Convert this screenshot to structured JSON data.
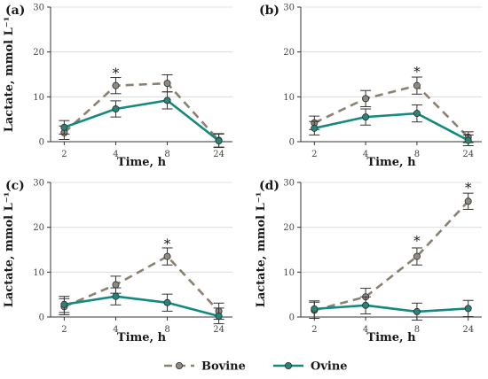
{
  "colors": {
    "bovine": "#8a8170",
    "ovine": "#13897f",
    "marker_bovine": "#8f8a80",
    "marker_ovine": "#2a8378"
  },
  "legend": [
    {
      "name": "Bovine",
      "key": "bovine",
      "dashed": true
    },
    {
      "name": "Ovine",
      "key": "ovine",
      "dashed": false
    }
  ],
  "chart_data": [
    {
      "type": "line",
      "panel": "(a)",
      "xlabel": "Time, h",
      "ylabel": "Lactate, mmol L⁻¹",
      "categories": [
        "2",
        "4",
        "8",
        "24"
      ],
      "ylim": [
        0,
        30
      ],
      "yticks": [
        0,
        10,
        20,
        30
      ],
      "series": [
        {
          "name": "Bovine",
          "key": "bovine",
          "values": [
            2.0,
            12.5,
            13.0,
            0.3
          ],
          "errors": [
            1.5,
            1.8,
            1.9,
            1.5
          ]
        },
        {
          "name": "Ovine",
          "key": "ovine",
          "values": [
            3.2,
            7.3,
            9.2,
            0.2
          ],
          "errors": [
            1.5,
            1.8,
            1.9,
            1.5
          ]
        }
      ],
      "annotations": [
        {
          "text": "*",
          "category": "4",
          "y": 15.5
        }
      ]
    },
    {
      "type": "line",
      "panel": "(b)",
      "xlabel": "Time, h",
      "ylabel": "",
      "categories": [
        "2",
        "4",
        "8",
        "24"
      ],
      "ylim": [
        0,
        30
      ],
      "yticks": [
        0,
        10,
        20,
        30
      ],
      "series": [
        {
          "name": "Bovine",
          "key": "bovine",
          "values": [
            4.2,
            9.6,
            12.5,
            1.0
          ],
          "errors": [
            1.5,
            1.8,
            1.9,
            1.2
          ]
        },
        {
          "name": "Ovine",
          "key": "ovine",
          "values": [
            3.0,
            5.5,
            6.3,
            0.3
          ],
          "errors": [
            1.5,
            1.8,
            1.9,
            1.2
          ]
        }
      ],
      "annotations": [
        {
          "text": "*",
          "category": "8",
          "y": 15.8
        }
      ]
    },
    {
      "type": "line",
      "panel": "(c)",
      "xlabel": "Time, h",
      "ylabel": "Lactate, mmol L⁻¹",
      "categories": [
        "2",
        "4",
        "8",
        "24"
      ],
      "ylim": [
        0,
        30
      ],
      "yticks": [
        0,
        10,
        20,
        30
      ],
      "series": [
        {
          "name": "Bovine",
          "key": "bovine",
          "values": [
            2.3,
            7.2,
            13.5,
            1.3
          ],
          "errors": [
            1.8,
            1.9,
            1.9,
            1.8
          ]
        },
        {
          "name": "Ovine",
          "key": "ovine",
          "values": [
            2.8,
            4.6,
            3.2,
            0.2
          ],
          "errors": [
            1.8,
            1.9,
            1.9,
            1.8
          ]
        }
      ],
      "annotations": [
        {
          "text": "*",
          "category": "8",
          "y": 16.5
        }
      ]
    },
    {
      "type": "line",
      "panel": "(d)",
      "xlabel": "Time, h",
      "ylabel": "Lactate, mmol L⁻¹",
      "categories": [
        "2",
        "4",
        "8",
        "24"
      ],
      "ylim": [
        0,
        30
      ],
      "yticks": [
        0,
        10,
        20,
        30
      ],
      "series": [
        {
          "name": "Bovine",
          "key": "bovine",
          "values": [
            1.5,
            4.5,
            13.5,
            25.8
          ],
          "errors": [
            1.8,
            1.9,
            1.9,
            1.8
          ]
        },
        {
          "name": "Ovine",
          "key": "ovine",
          "values": [
            1.8,
            2.6,
            1.2,
            1.9
          ],
          "errors": [
            1.8,
            1.9,
            1.9,
            1.8
          ]
        }
      ],
      "annotations": [
        {
          "text": "*",
          "category": "8",
          "y": 17.2
        },
        {
          "text": "*",
          "category": "24",
          "y": 29.0
        }
      ]
    }
  ]
}
